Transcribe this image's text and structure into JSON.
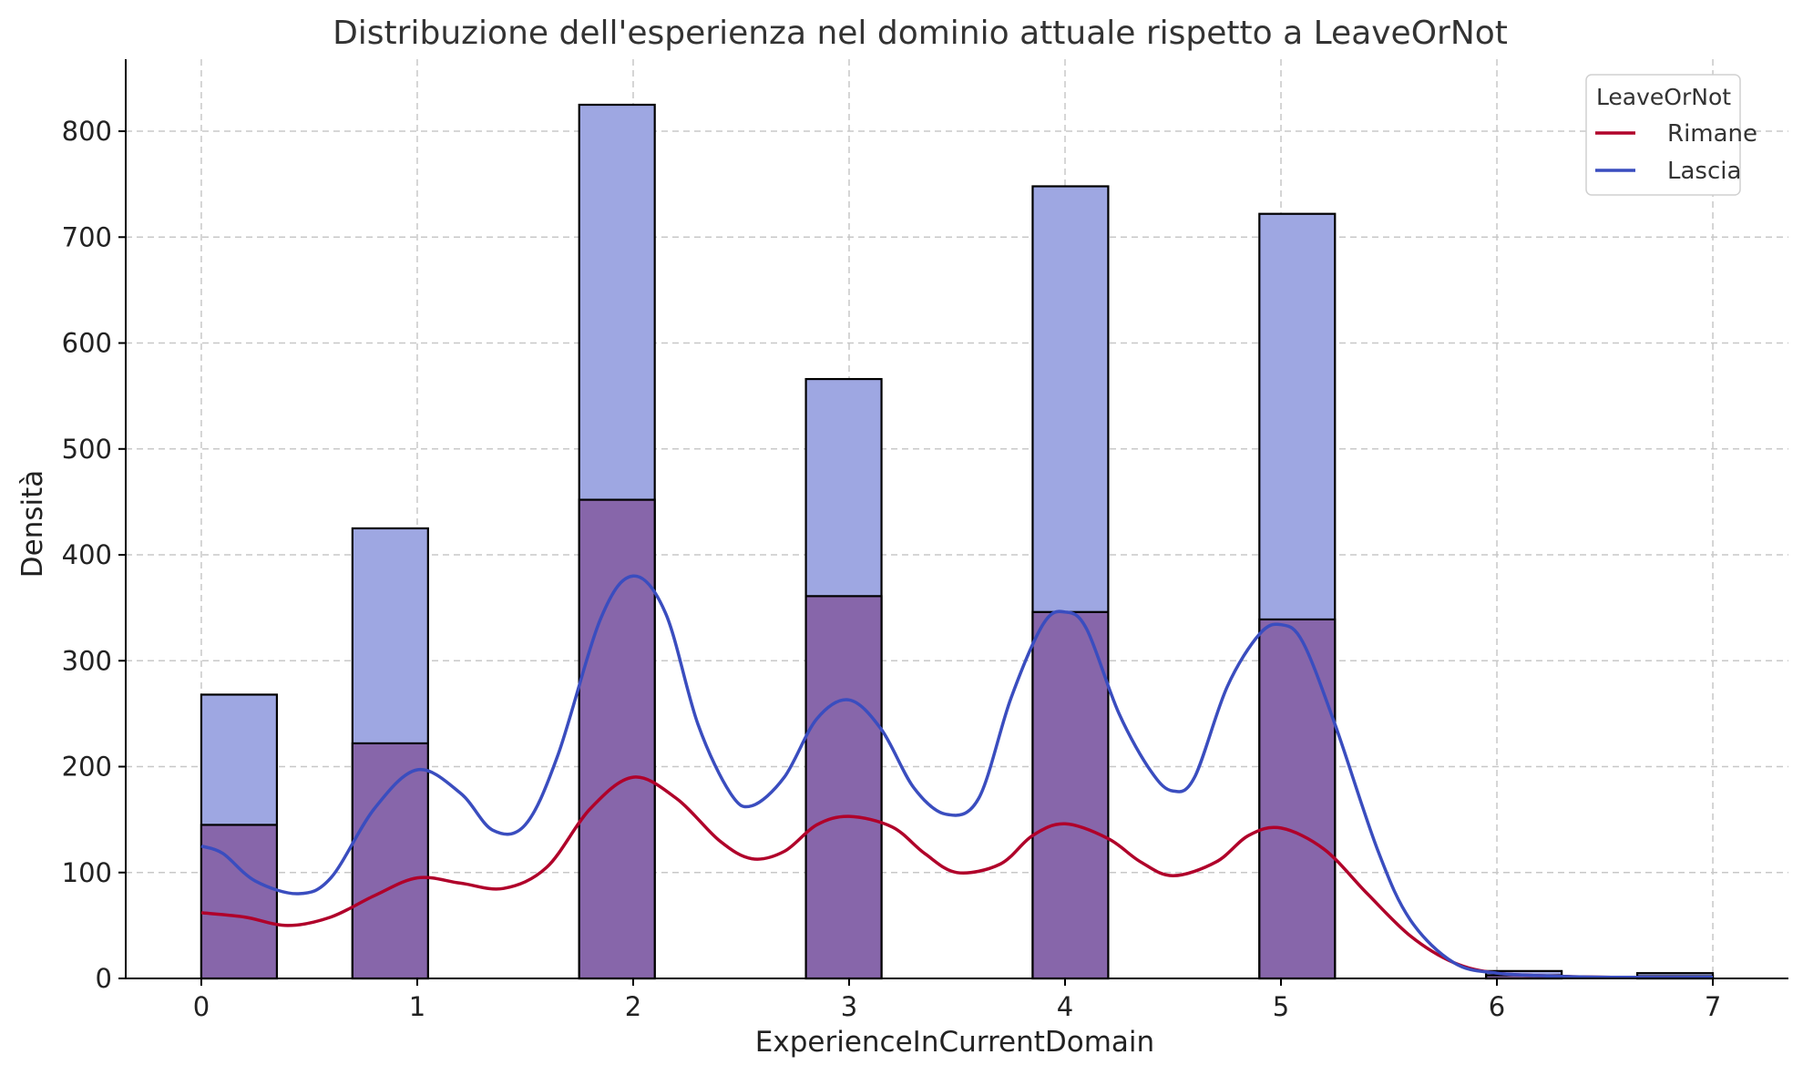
{
  "chart_data": {
    "type": "bar",
    "title": "Distribuzione dell'esperienza nel dominio attuale rispetto a LeaveOrNot",
    "xlabel": "ExperienceInCurrentDomain",
    "ylabel": "Densità",
    "xlim": [
      -0.35,
      7.35
    ],
    "ylim": [
      0,
      868
    ],
    "x_ticks": [
      0,
      1,
      2,
      3,
      4,
      5,
      6,
      7
    ],
    "y_ticks": [
      0,
      100,
      200,
      300,
      400,
      500,
      600,
      700,
      800
    ],
    "bin_width": 0.35,
    "grid": true,
    "legend": {
      "title": "LeaveOrNot",
      "placement": "top-right",
      "entries": [
        {
          "label": "Rimane",
          "color": "#b0002a"
        },
        {
          "label": "Lascia",
          "color": "#3a4dbf"
        }
      ]
    },
    "series": [
      {
        "name": "Rimane",
        "color": "#b0002a",
        "bar_color": "#8766aa",
        "bins": [
          {
            "x0": 0,
            "value": 145
          },
          {
            "x0": 0.7,
            "value": 222
          },
          {
            "x0": 1.75,
            "value": 452
          },
          {
            "x0": 2.8,
            "value": 361
          },
          {
            "x0": 3.85,
            "value": 346
          },
          {
            "x0": 4.9,
            "value": 339
          },
          {
            "x0": 5.95,
            "value": 3
          },
          {
            "x0": 6.65,
            "value": 2
          }
        ],
        "kde": [
          [
            0,
            62
          ],
          [
            0.2,
            58
          ],
          [
            0.4,
            50
          ],
          [
            0.6,
            58
          ],
          [
            0.8,
            78
          ],
          [
            1.0,
            95
          ],
          [
            1.2,
            90
          ],
          [
            1.4,
            85
          ],
          [
            1.6,
            105
          ],
          [
            1.8,
            160
          ],
          [
            2.0,
            190
          ],
          [
            2.2,
            170
          ],
          [
            2.4,
            130
          ],
          [
            2.55,
            113
          ],
          [
            2.7,
            120
          ],
          [
            2.85,
            145
          ],
          [
            3.0,
            153
          ],
          [
            3.2,
            143
          ],
          [
            3.35,
            118
          ],
          [
            3.5,
            100
          ],
          [
            3.7,
            108
          ],
          [
            3.85,
            135
          ],
          [
            4.0,
            146
          ],
          [
            4.2,
            132
          ],
          [
            4.35,
            110
          ],
          [
            4.5,
            97
          ],
          [
            4.7,
            110
          ],
          [
            4.85,
            135
          ],
          [
            5.0,
            142
          ],
          [
            5.2,
            122
          ],
          [
            5.4,
            80
          ],
          [
            5.6,
            40
          ],
          [
            5.8,
            15
          ],
          [
            6.0,
            5
          ],
          [
            6.3,
            2
          ],
          [
            6.6,
            1
          ],
          [
            7.0,
            1
          ]
        ]
      },
      {
        "name": "Lascia",
        "color": "#3a4dbf",
        "bar_color": "#9ea7e2",
        "bins": [
          {
            "x0": 0,
            "value": 268
          },
          {
            "x0": 0.7,
            "value": 425
          },
          {
            "x0": 1.75,
            "value": 825
          },
          {
            "x0": 2.8,
            "value": 566
          },
          {
            "x0": 3.85,
            "value": 748
          },
          {
            "x0": 4.9,
            "value": 722
          },
          {
            "x0": 5.95,
            "value": 7
          },
          {
            "x0": 6.65,
            "value": 5
          }
        ],
        "kde": [
          [
            0,
            125
          ],
          [
            0.1,
            118
          ],
          [
            0.25,
            92
          ],
          [
            0.45,
            80
          ],
          [
            0.6,
            95
          ],
          [
            0.8,
            160
          ],
          [
            1.0,
            197
          ],
          [
            1.2,
            175
          ],
          [
            1.35,
            140
          ],
          [
            1.5,
            145
          ],
          [
            1.65,
            210
          ],
          [
            1.85,
            340
          ],
          [
            2.0,
            380
          ],
          [
            2.15,
            345
          ],
          [
            2.3,
            240
          ],
          [
            2.45,
            175
          ],
          [
            2.55,
            163
          ],
          [
            2.7,
            190
          ],
          [
            2.85,
            245
          ],
          [
            3.0,
            263
          ],
          [
            3.15,
            235
          ],
          [
            3.3,
            180
          ],
          [
            3.45,
            155
          ],
          [
            3.6,
            170
          ],
          [
            3.75,
            265
          ],
          [
            3.9,
            335
          ],
          [
            4.0,
            346
          ],
          [
            4.1,
            330
          ],
          [
            4.25,
            250
          ],
          [
            4.4,
            195
          ],
          [
            4.5,
            177
          ],
          [
            4.6,
            190
          ],
          [
            4.75,
            275
          ],
          [
            4.9,
            325
          ],
          [
            5.0,
            334
          ],
          [
            5.1,
            318
          ],
          [
            5.25,
            240
          ],
          [
            5.45,
            120
          ],
          [
            5.6,
            55
          ],
          [
            5.8,
            15
          ],
          [
            6.0,
            5
          ],
          [
            6.3,
            2
          ],
          [
            6.6,
            1
          ],
          [
            7.0,
            1
          ]
        ]
      }
    ]
  }
}
